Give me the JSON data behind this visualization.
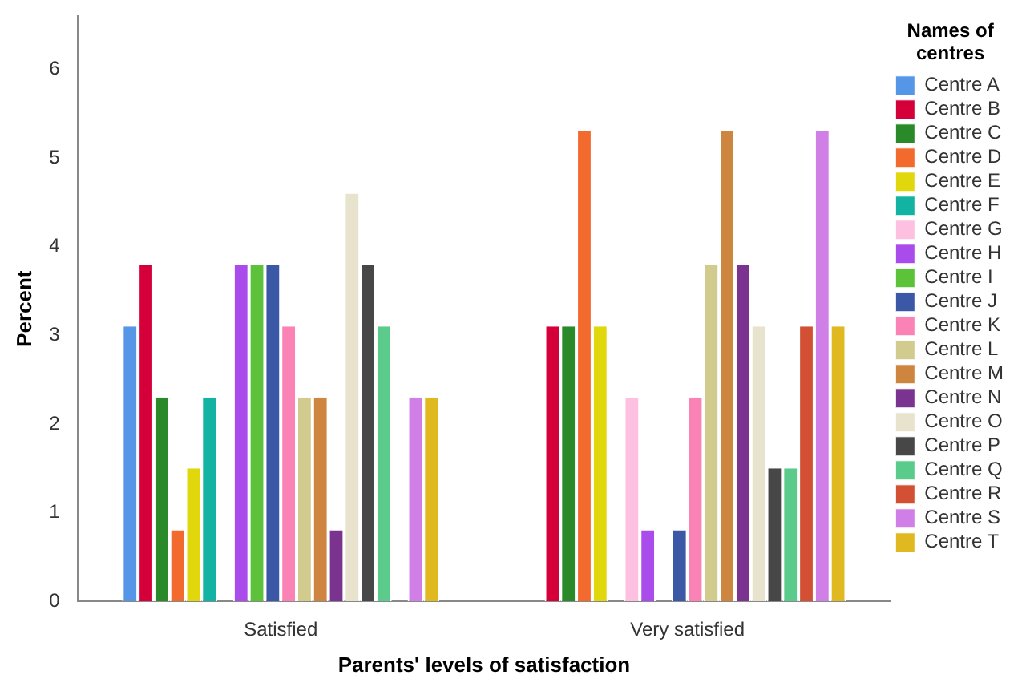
{
  "chart_data": {
    "type": "bar",
    "xlabel": "Parents' levels of satisfaction",
    "ylabel": "Percent",
    "legend_title": "Names of centres",
    "legend": "right",
    "grid": false,
    "categories": [
      "Satisfied",
      "Very satisfied"
    ],
    "ylim": [
      0,
      6.6
    ],
    "yticks": [
      0,
      1,
      2,
      3,
      4,
      5,
      6
    ],
    "series": [
      {
        "name": "Centre A",
        "color": "#5596e6",
        "values": [
          3.1,
          null
        ]
      },
      {
        "name": "Centre B",
        "color": "#d5003a",
        "values": [
          3.8,
          3.1
        ]
      },
      {
        "name": "Centre C",
        "color": "#2a8a2a",
        "values": [
          2.3,
          3.1
        ]
      },
      {
        "name": "Centre D",
        "color": "#f26a2d",
        "values": [
          0.8,
          5.3
        ]
      },
      {
        "name": "Centre E",
        "color": "#e0d80c",
        "values": [
          1.5,
          3.1
        ]
      },
      {
        "name": "Centre F",
        "color": "#12b3a2",
        "values": [
          2.3,
          null
        ]
      },
      {
        "name": "Centre G",
        "color": "#fdc0e0",
        "values": [
          null,
          2.3
        ]
      },
      {
        "name": "Centre H",
        "color": "#a94ceb",
        "values": [
          3.8,
          0.8
        ]
      },
      {
        "name": "Centre I",
        "color": "#5cc23a",
        "values": [
          3.8,
          null
        ]
      },
      {
        "name": "Centre J",
        "color": "#3a58a6",
        "values": [
          3.8,
          0.8
        ]
      },
      {
        "name": "Centre K",
        "color": "#fb82b4",
        "values": [
          3.1,
          2.3
        ]
      },
      {
        "name": "Centre L",
        "color": "#d2cb8e",
        "values": [
          2.3,
          3.8
        ]
      },
      {
        "name": "Centre M",
        "color": "#cd853f",
        "values": [
          2.3,
          5.3
        ]
      },
      {
        "name": "Centre N",
        "color": "#7a3490",
        "values": [
          0.8,
          3.8
        ]
      },
      {
        "name": "Centre O",
        "color": "#e8e3cc",
        "values": [
          4.6,
          3.1
        ]
      },
      {
        "name": "Centre P",
        "color": "#474747",
        "values": [
          3.8,
          1.5
        ]
      },
      {
        "name": "Centre Q",
        "color": "#5acb8a",
        "values": [
          3.1,
          1.5
        ]
      },
      {
        "name": "Centre R",
        "color": "#d45035",
        "values": [
          null,
          3.1
        ]
      },
      {
        "name": "Centre S",
        "color": "#cf7fe6",
        "values": [
          2.3,
          5.3
        ]
      },
      {
        "name": "Centre T",
        "color": "#e0b820",
        "values": [
          2.3,
          3.1
        ]
      }
    ]
  }
}
